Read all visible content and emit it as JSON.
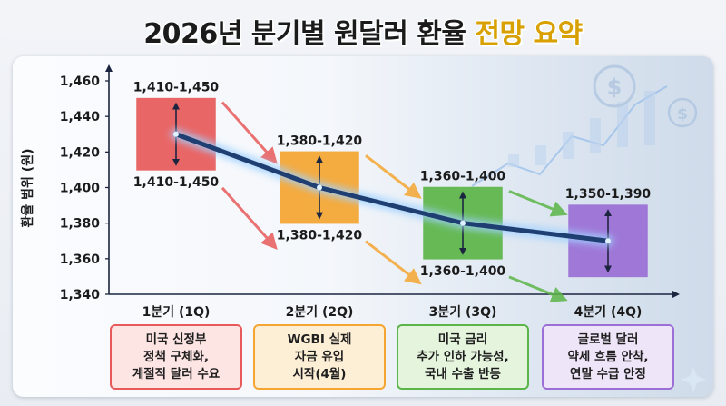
{
  "title": {
    "main": "2026년 분기별 원달러 환율",
    "accent": "전망 요약"
  },
  "colors": {
    "q1": "#e85a5a",
    "q2": "#f5a531",
    "q3": "#5cb548",
    "q4": "#9b6fd6",
    "q1_light": "#fde5e4",
    "q2_light": "#fdefd6",
    "q3_light": "#e5f4dd",
    "q4_light": "#efe5f8",
    "trend": "#1f3f73",
    "glow": "#9fd0ff"
  },
  "chart_data": {
    "type": "bar",
    "ylabel": "환율 범위 (원)",
    "ylim": [
      1340,
      1460
    ],
    "yticks": [
      1340,
      1360,
      1380,
      1400,
      1420,
      1440,
      1460
    ],
    "ytick_labels": [
      "1,340",
      "1,360",
      "1,380",
      "1,400",
      "1,420",
      "1,440",
      "1,460"
    ],
    "categories": [
      "1분기 (1Q)",
      "2분기 (2Q)",
      "3분기 (3Q)",
      "4분기 (4Q)"
    ],
    "ranges": [
      [
        1410,
        1450
      ],
      [
        1380,
        1420
      ],
      [
        1360,
        1400
      ],
      [
        1350,
        1390
      ]
    ],
    "top_labels": [
      "1,410-1,450",
      "1,380-1,420",
      "1,360-1,400",
      "1,350-1,390"
    ],
    "bottom_labels": [
      "1,410-1,450",
      "1,380-1,420",
      "1,360-1,400",
      ""
    ],
    "trend_line": [
      1430,
      1400,
      1380,
      1370
    ],
    "grid": false,
    "captions": [
      "미국 신정부\n정책 구체화,\n계절적 달러 수요",
      "WGBI 실제\n자금 유입\n시작(4월)",
      "미국 금리\n추가 인하 가능성,\n국내 수출 반등",
      "글로벌 달러\n약세 흐름 안착,\n연말 수급 안정"
    ]
  }
}
